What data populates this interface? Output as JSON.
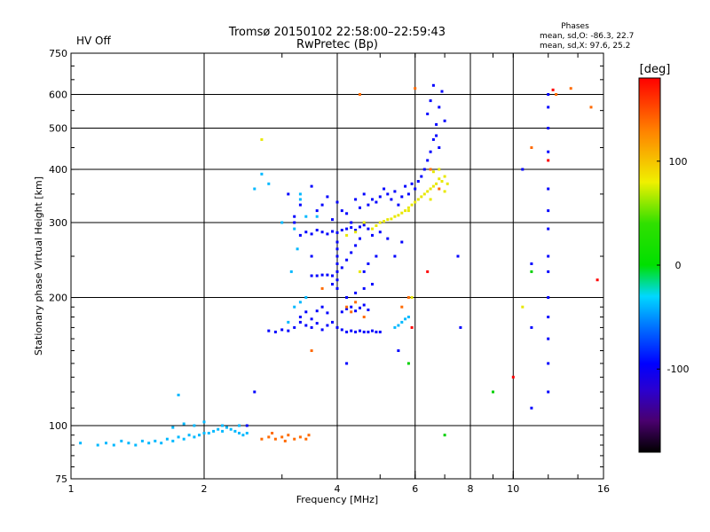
{
  "chart_data": {
    "type": "scatter",
    "title": "Tromsø 20150102 22:58:00–22:59:43",
    "subtitle": "RwPretec (Bp)",
    "status_label": "HV Off",
    "status_color": "#d40000",
    "phases": {
      "heading": "Phases",
      "line_o": "mean, sd,O: -86.3, 22.7",
      "line_x": "mean, sd,X:  97.6, 25.2"
    },
    "xlabel": "Frequency [MHz]",
    "ylabel": "Stationary phase Virtual Height [km]",
    "x_scale": "log",
    "y_scale": "log",
    "xlim": [
      1,
      16
    ],
    "ylim": [
      75,
      750
    ],
    "grid": true,
    "x_ticks": [
      {
        "value": 1,
        "label": "1"
      },
      {
        "value": 2,
        "label": "2"
      },
      {
        "value": 4,
        "label": "4"
      },
      {
        "value": 6,
        "label": "6"
      },
      {
        "value": 8,
        "label": "8"
      },
      {
        "value": 10,
        "label": "10"
      },
      {
        "value": 16,
        "label": "16"
      }
    ],
    "x_gridlines": [
      2,
      4,
      6,
      8,
      10
    ],
    "y_ticks": [
      {
        "value": 75,
        "label": "75"
      },
      {
        "value": 100,
        "label": "100"
      },
      {
        "value": 200,
        "label": "200"
      },
      {
        "value": 300,
        "label": "300"
      },
      {
        "value": 400,
        "label": "400"
      },
      {
        "value": 500,
        "label": "500"
      },
      {
        "value": 600,
        "label": "600"
      },
      {
        "value": 750,
        "label": "750"
      }
    ],
    "y_gridlines": [
      100,
      200,
      300,
      400,
      500,
      600
    ],
    "colorbar": {
      "title": "[deg]",
      "range": [
        -180,
        180
      ],
      "ticks": [
        {
          "value": 100,
          "label": "100"
        },
        {
          "value": 0,
          "label": "0"
        },
        {
          "value": -100,
          "label": "-100"
        }
      ],
      "stops": [
        {
          "value": -180,
          "color": "#000000"
        },
        {
          "value": -150,
          "color": "#4a006e"
        },
        {
          "value": -120,
          "color": "#2a00d0"
        },
        {
          "value": -95,
          "color": "#0000ff"
        },
        {
          "value": -60,
          "color": "#0070ff"
        },
        {
          "value": -30,
          "color": "#00d8ff"
        },
        {
          "value": 0,
          "color": "#00e000"
        },
        {
          "value": 40,
          "color": "#30e000"
        },
        {
          "value": 80,
          "color": "#f0f000"
        },
        {
          "value": 130,
          "color": "#ff8000"
        },
        {
          "value": 180,
          "color": "#ff0000"
        }
      ]
    },
    "series": [
      {
        "color": "#0000ff",
        "points": [
          [
            3.3,
            280
          ],
          [
            3.4,
            285
          ],
          [
            3.5,
            282
          ],
          [
            3.6,
            288
          ],
          [
            3.7,
            285
          ],
          [
            3.8,
            282
          ],
          [
            3.9,
            286
          ],
          [
            4.0,
            284
          ],
          [
            4.1,
            288
          ],
          [
            4.2,
            290
          ],
          [
            4.3,
            292
          ],
          [
            4.4,
            288
          ],
          [
            4.5,
            293
          ],
          [
            4.6,
            296
          ],
          [
            4.7,
            290
          ],
          [
            3.5,
            250
          ],
          [
            3.6,
            320
          ],
          [
            3.7,
            330
          ],
          [
            3.8,
            345
          ],
          [
            3.9,
            305
          ],
          [
            4.0,
            335
          ],
          [
            4.1,
            320
          ],
          [
            4.2,
            315
          ],
          [
            4.3,
            300
          ],
          [
            4.4,
            340
          ],
          [
            4.5,
            325
          ],
          [
            4.6,
            350
          ],
          [
            4.7,
            330
          ],
          [
            4.8,
            340
          ],
          [
            4.9,
            335
          ],
          [
            5.0,
            345
          ],
          [
            5.1,
            360
          ],
          [
            5.2,
            350
          ],
          [
            5.3,
            340
          ],
          [
            5.4,
            355
          ],
          [
            5.5,
            330
          ],
          [
            5.6,
            345
          ],
          [
            5.7,
            365
          ],
          [
            5.8,
            350
          ],
          [
            5.9,
            370
          ],
          [
            6.0,
            360
          ],
          [
            6.1,
            375
          ],
          [
            6.2,
            385
          ],
          [
            6.3,
            400
          ],
          [
            6.4,
            420
          ],
          [
            6.5,
            440
          ],
          [
            6.6,
            470
          ],
          [
            6.7,
            510
          ],
          [
            6.8,
            560
          ],
          [
            6.9,
            610
          ],
          [
            6.6,
            630
          ],
          [
            6.5,
            580
          ],
          [
            6.4,
            540
          ],
          [
            6.7,
            480
          ],
          [
            6.8,
            450
          ],
          [
            7.0,
            520
          ],
          [
            3.3,
            175
          ],
          [
            3.4,
            172
          ],
          [
            3.5,
            170
          ],
          [
            3.6,
            174
          ],
          [
            3.7,
            168
          ],
          [
            3.8,
            172
          ],
          [
            3.9,
            175
          ],
          [
            4.0,
            170
          ],
          [
            4.1,
            168
          ],
          [
            4.2,
            166
          ],
          [
            4.3,
            167
          ],
          [
            4.4,
            166
          ],
          [
            4.5,
            167
          ],
          [
            4.6,
            166
          ],
          [
            4.7,
            166
          ],
          [
            4.8,
            167
          ],
          [
            4.9,
            166
          ],
          [
            5.0,
            166
          ],
          [
            3.2,
            170
          ],
          [
            3.3,
            180
          ],
          [
            3.4,
            185
          ],
          [
            3.5,
            178
          ],
          [
            3.6,
            186
          ],
          [
            3.7,
            190
          ],
          [
            3.8,
            184
          ],
          [
            4.1,
            185
          ],
          [
            4.2,
            188
          ],
          [
            4.3,
            190
          ],
          [
            4.4,
            186
          ],
          [
            4.5,
            189
          ],
          [
            4.6,
            192
          ],
          [
            4.7,
            187
          ],
          [
            3.1,
            167
          ],
          [
            3.0,
            168
          ],
          [
            2.9,
            166
          ],
          [
            2.8,
            167
          ],
          [
            4.0,
            250
          ],
          [
            4.0,
            260
          ],
          [
            4.0,
            240
          ],
          [
            4.0,
            230
          ],
          [
            4.0,
            220
          ],
          [
            4.0,
            210
          ],
          [
            4.0,
            270
          ],
          [
            3.9,
            225
          ],
          [
            3.9,
            215
          ],
          [
            4.1,
            235
          ],
          [
            4.2,
            245
          ],
          [
            4.3,
            255
          ],
          [
            4.4,
            265
          ],
          [
            4.5,
            275
          ],
          [
            4.6,
            230
          ],
          [
            4.7,
            240
          ],
          [
            4.8,
            280
          ],
          [
            4.9,
            250
          ],
          [
            5.0,
            285
          ],
          [
            5.2,
            275
          ],
          [
            5.4,
            250
          ],
          [
            5.6,
            270
          ],
          [
            3.5,
            225
          ],
          [
            3.6,
            225
          ],
          [
            3.7,
            226
          ],
          [
            3.8,
            226
          ],
          [
            4.2,
            200
          ],
          [
            4.4,
            205
          ],
          [
            4.6,
            210
          ],
          [
            4.8,
            215
          ],
          [
            3.2,
            300
          ],
          [
            3.3,
            330
          ],
          [
            3.2,
            310
          ],
          [
            3.1,
            350
          ],
          [
            3.5,
            365
          ],
          [
            12.0,
            600
          ],
          [
            12.0,
            560
          ],
          [
            12.0,
            500
          ],
          [
            12.0,
            440
          ],
          [
            12.0,
            360
          ],
          [
            12.0,
            320
          ],
          [
            12.0,
            290
          ],
          [
            12.0,
            250
          ],
          [
            12.0,
            230
          ],
          [
            12.0,
            200
          ],
          [
            12.0,
            180
          ],
          [
            12.0,
            160
          ],
          [
            12.0,
            140
          ],
          [
            12.0,
            120
          ],
          [
            11.0,
            110
          ],
          [
            11.0,
            170
          ],
          [
            11.0,
            240
          ],
          [
            10.5,
            400
          ],
          [
            7.5,
            250
          ],
          [
            7.6,
            170
          ],
          [
            5.5,
            150
          ],
          [
            4.2,
            140
          ],
          [
            2.6,
            120
          ],
          [
            2.5,
            100
          ]
        ]
      },
      {
        "color": "#00b8ff",
        "points": [
          [
            1.05,
            91
          ],
          [
            1.15,
            90
          ],
          [
            1.2,
            91
          ],
          [
            1.25,
            90
          ],
          [
            1.3,
            92
          ],
          [
            1.35,
            91
          ],
          [
            1.4,
            90
          ],
          [
            1.45,
            92
          ],
          [
            1.5,
            91
          ],
          [
            1.55,
            92
          ],
          [
            1.6,
            91
          ],
          [
            1.65,
            93
          ],
          [
            1.7,
            92
          ],
          [
            1.75,
            94
          ],
          [
            1.8,
            93
          ],
          [
            1.85,
            95
          ],
          [
            1.9,
            94
          ],
          [
            1.95,
            95
          ],
          [
            2.0,
            96
          ],
          [
            2.05,
            96
          ],
          [
            2.1,
            97
          ],
          [
            2.15,
            98
          ],
          [
            2.2,
            97
          ],
          [
            2.25,
            99
          ],
          [
            2.3,
            98
          ],
          [
            2.35,
            97
          ],
          [
            2.4,
            96
          ],
          [
            2.45,
            95
          ],
          [
            2.5,
            96
          ],
          [
            1.7,
            99
          ],
          [
            1.8,
            101
          ],
          [
            1.9,
            100
          ],
          [
            2.0,
            102
          ],
          [
            2.2,
            100
          ],
          [
            2.4,
            100
          ],
          [
            1.75,
            118
          ],
          [
            3.2,
            290
          ],
          [
            3.3,
            340
          ],
          [
            3.4,
            310
          ],
          [
            3.0,
            300
          ],
          [
            3.25,
            260
          ],
          [
            3.15,
            230
          ],
          [
            3.3,
            350
          ],
          [
            3.6,
            310
          ],
          [
            3.4,
            200
          ],
          [
            3.3,
            195
          ],
          [
            3.2,
            190
          ],
          [
            3.1,
            175
          ],
          [
            5.4,
            170
          ],
          [
            5.5,
            172
          ],
          [
            5.6,
            175
          ],
          [
            5.7,
            178
          ],
          [
            5.8,
            180
          ],
          [
            2.7,
            390
          ],
          [
            2.8,
            370
          ],
          [
            2.6,
            360
          ]
        ]
      },
      {
        "color": "#e8e800",
        "points": [
          [
            4.8,
            290
          ],
          [
            4.9,
            295
          ],
          [
            5.0,
            300
          ],
          [
            5.1,
            302
          ],
          [
            5.2,
            305
          ],
          [
            5.3,
            306
          ],
          [
            5.4,
            310
          ],
          [
            5.5,
            312
          ],
          [
            5.6,
            316
          ],
          [
            5.7,
            320
          ],
          [
            5.8,
            325
          ],
          [
            5.9,
            330
          ],
          [
            6.0,
            335
          ],
          [
            6.1,
            340
          ],
          [
            6.2,
            345
          ],
          [
            6.3,
            350
          ],
          [
            6.4,
            355
          ],
          [
            6.5,
            360
          ],
          [
            6.6,
            365
          ],
          [
            6.7,
            370
          ],
          [
            6.8,
            380
          ],
          [
            6.9,
            375
          ],
          [
            7.0,
            385
          ],
          [
            7.1,
            370
          ],
          [
            6.6,
            395
          ],
          [
            6.8,
            400
          ],
          [
            7.0,
            355
          ],
          [
            6.5,
            340
          ],
          [
            4.2,
            280
          ],
          [
            4.4,
            285
          ],
          [
            4.6,
            300
          ],
          [
            5.8,
            320
          ],
          [
            2.7,
            470
          ],
          [
            10.5,
            190
          ],
          [
            5.9,
            200
          ],
          [
            4.5,
            230
          ]
        ]
      },
      {
        "color": "#ff6a00",
        "points": [
          [
            2.7,
            93
          ],
          [
            2.8,
            94
          ],
          [
            2.9,
            93
          ],
          [
            3.0,
            94
          ],
          [
            3.1,
            95
          ],
          [
            3.2,
            93
          ],
          [
            3.3,
            94
          ],
          [
            3.4,
            93
          ],
          [
            3.45,
            95
          ],
          [
            2.85,
            96
          ],
          [
            3.05,
            92
          ],
          [
            4.2,
            190
          ],
          [
            4.3,
            185
          ],
          [
            4.4,
            195
          ],
          [
            4.6,
            180
          ],
          [
            5.6,
            190
          ],
          [
            5.8,
            200
          ],
          [
            6.5,
            400
          ],
          [
            6.8,
            360
          ],
          [
            3.5,
            150
          ],
          [
            3.7,
            210
          ],
          [
            4.5,
            600
          ],
          [
            6.0,
            620
          ],
          [
            12.5,
            600
          ],
          [
            13.5,
            620
          ],
          [
            11.0,
            450
          ],
          [
            15.0,
            560
          ]
        ]
      },
      {
        "color": "#ff0000",
        "points": [
          [
            6.4,
            230
          ],
          [
            5.9,
            170
          ],
          [
            15.5,
            220
          ],
          [
            12.0,
            420
          ],
          [
            10.0,
            130
          ],
          [
            12.3,
            615
          ]
        ]
      },
      {
        "color": "#00d000",
        "points": [
          [
            5.8,
            140
          ],
          [
            11.0,
            230
          ],
          [
            9.0,
            120
          ],
          [
            7.0,
            95
          ]
        ]
      }
    ]
  }
}
